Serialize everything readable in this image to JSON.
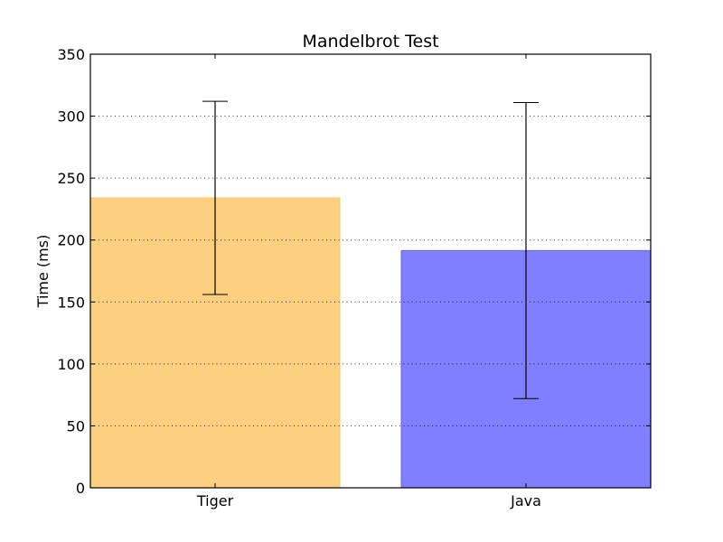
{
  "chart_data": {
    "type": "bar",
    "title": "Mandelbrot Test",
    "xlabel": "",
    "ylabel": "Time (ms)",
    "categories": [
      "Tiger",
      "Java"
    ],
    "values": [
      234,
      191.5
    ],
    "errors": [
      78,
      119.5
    ],
    "colors": [
      "#fdcf80",
      "#7f7fff"
    ],
    "ylim": [
      0,
      350
    ],
    "yticks": [
      0,
      50,
      100,
      150,
      200,
      250,
      300,
      350
    ],
    "grid": "y-dotted",
    "legend": null
  }
}
